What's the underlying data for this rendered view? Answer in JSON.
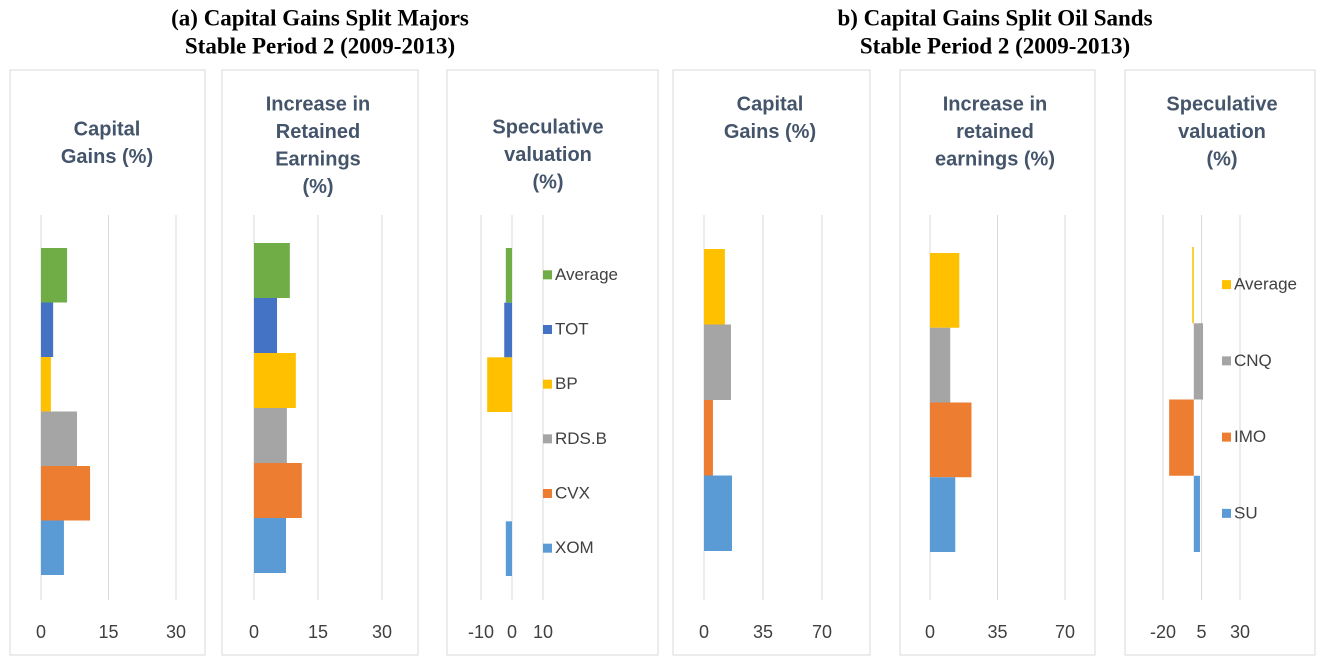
{
  "headings": [
    "(a) Capital Gains Split Majors",
    "Stable Period 2 (2009-2013)",
    "b) Capital Gains Split Oil Sands",
    "Stable Period 2 (2009-2013)"
  ],
  "chart_data": [
    {
      "type": "barh",
      "title": [
        "Capital",
        "Gains (%)"
      ],
      "categories": [
        "Average",
        "TOT",
        "BP",
        "RDS.B",
        "CVX",
        "XOM"
      ],
      "values": [
        5.8,
        2.7,
        2.2,
        8,
        10.9,
        5.1
      ],
      "colors": [
        "#70ad47",
        "#4472c4",
        "#ffc000",
        "#a5a5a5",
        "#ed7d31",
        "#5b9bd5"
      ],
      "xlim": [
        0,
        30
      ],
      "xticks": [
        0,
        15,
        30
      ],
      "grid": true
    },
    {
      "type": "barh",
      "title": [
        "Increase in",
        "Retained",
        "Earnings",
        "(%)"
      ],
      "categories": [
        "Average",
        "TOT",
        "BP",
        "RDS.B",
        "CVX",
        "XOM"
      ],
      "values": [
        8.4,
        5.4,
        9.8,
        7.7,
        11.2,
        7.5
      ],
      "colors": [
        "#70ad47",
        "#4472c4",
        "#ffc000",
        "#a5a5a5",
        "#ed7d31",
        "#5b9bd5"
      ],
      "xlim": [
        0,
        30
      ],
      "xticks": [
        0,
        15,
        30
      ],
      "grid": true
    },
    {
      "type": "barh",
      "title": [
        "Speculative",
        "valuation",
        "(%)"
      ],
      "categories": [
        "Average",
        "TOT",
        "BP",
        "RDS.B",
        "CVX",
        "XOM"
      ],
      "values": [
        -2,
        -2.5,
        -8,
        0,
        0,
        -2
      ],
      "colors": [
        "#70ad47",
        "#4472c4",
        "#ffc000",
        "#a5a5a5",
        "#ed7d31",
        "#5b9bd5"
      ],
      "xlim": [
        -10,
        10
      ],
      "xticks": [
        -10,
        0,
        10
      ],
      "grid": true,
      "legend": "right"
    },
    {
      "type": "barh",
      "title": [
        "Capital",
        "Gains (%)"
      ],
      "categories": [
        "Average",
        "CNQ",
        "IMO",
        "SU"
      ],
      "values": [
        12.4,
        16,
        5.3,
        16.6
      ],
      "colors": [
        "#ffc000",
        "#a5a5a5",
        "#ed7d31",
        "#5b9bd5"
      ],
      "xlim": [
        0,
        70
      ],
      "xticks": [
        0,
        35,
        70
      ],
      "grid": true
    },
    {
      "type": "barh",
      "title": [
        "Increase in",
        "retained",
        "earnings (%)"
      ],
      "categories": [
        "Average",
        "CNQ",
        "IMO",
        "SU"
      ],
      "values": [
        15.2,
        10.5,
        21.5,
        13.1
      ],
      "colors": [
        "#ffc000",
        "#a5a5a5",
        "#ed7d31",
        "#5b9bd5"
      ],
      "xlim": [
        0,
        70
      ],
      "xticks": [
        0,
        35,
        70
      ],
      "grid": true
    },
    {
      "type": "barh",
      "title": [
        "Speculative",
        "valuation",
        "(%)"
      ],
      "categories": [
        "Average",
        "CNQ",
        "IMO",
        "SU"
      ],
      "values": [
        -1,
        6,
        -16,
        4
      ],
      "colors": [
        "#ffc000",
        "#a5a5a5",
        "#ed7d31",
        "#5b9bd5"
      ],
      "xlim": [
        -20,
        30
      ],
      "xticks": [
        -20,
        5,
        30
      ],
      "grid": true,
      "legend": "right"
    }
  ]
}
